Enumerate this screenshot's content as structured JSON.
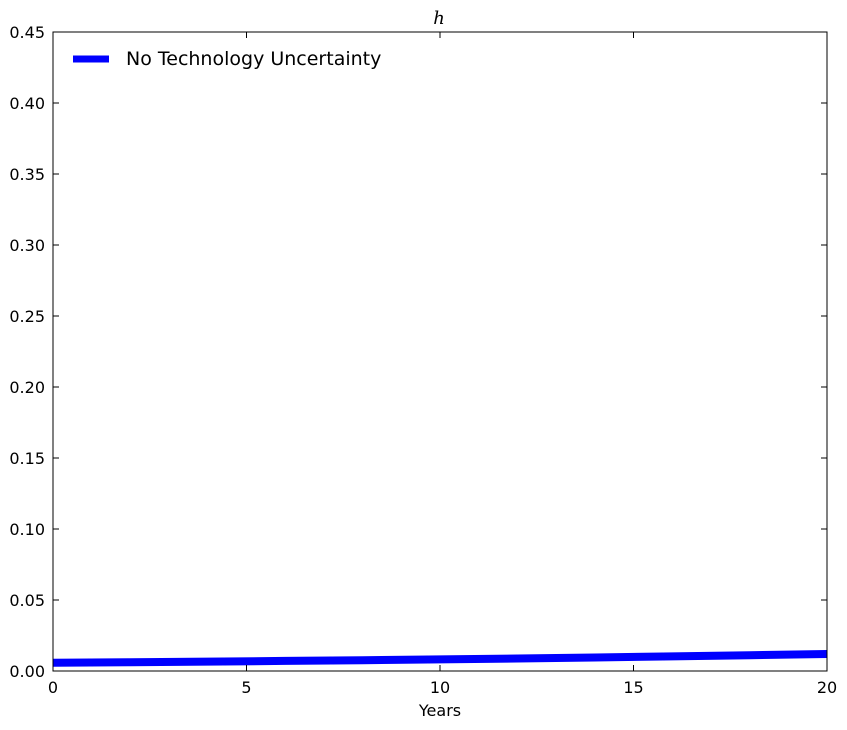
{
  "chart_data": {
    "type": "line",
    "title": "h",
    "xlabel": "Years",
    "ylabel": "",
    "xlim": [
      0,
      20
    ],
    "ylim": [
      0,
      0.45
    ],
    "xticks": [
      0,
      5,
      10,
      15,
      20
    ],
    "xtick_labels": [
      "0",
      "5",
      "10",
      "15",
      "20"
    ],
    "yticks": [
      0,
      0.05,
      0.1,
      0.15,
      0.2,
      0.25,
      0.3,
      0.35,
      0.4,
      0.45
    ],
    "ytick_labels": [
      "0.00",
      "0.05",
      "0.10",
      "0.15",
      "0.20",
      "0.25",
      "0.30",
      "0.35",
      "0.40",
      "0.45"
    ],
    "grid": false,
    "legend_position": "top-left",
    "series": [
      {
        "name": "No Technology Uncertainty",
        "color": "#0000ff",
        "x": [
          0,
          2,
          4,
          6,
          8,
          10,
          12,
          14,
          16,
          18,
          20
        ],
        "y": [
          0.0058,
          0.0062,
          0.0066,
          0.0071,
          0.0076,
          0.0082,
          0.0088,
          0.0095,
          0.0103,
          0.0111,
          0.012
        ]
      }
    ]
  }
}
